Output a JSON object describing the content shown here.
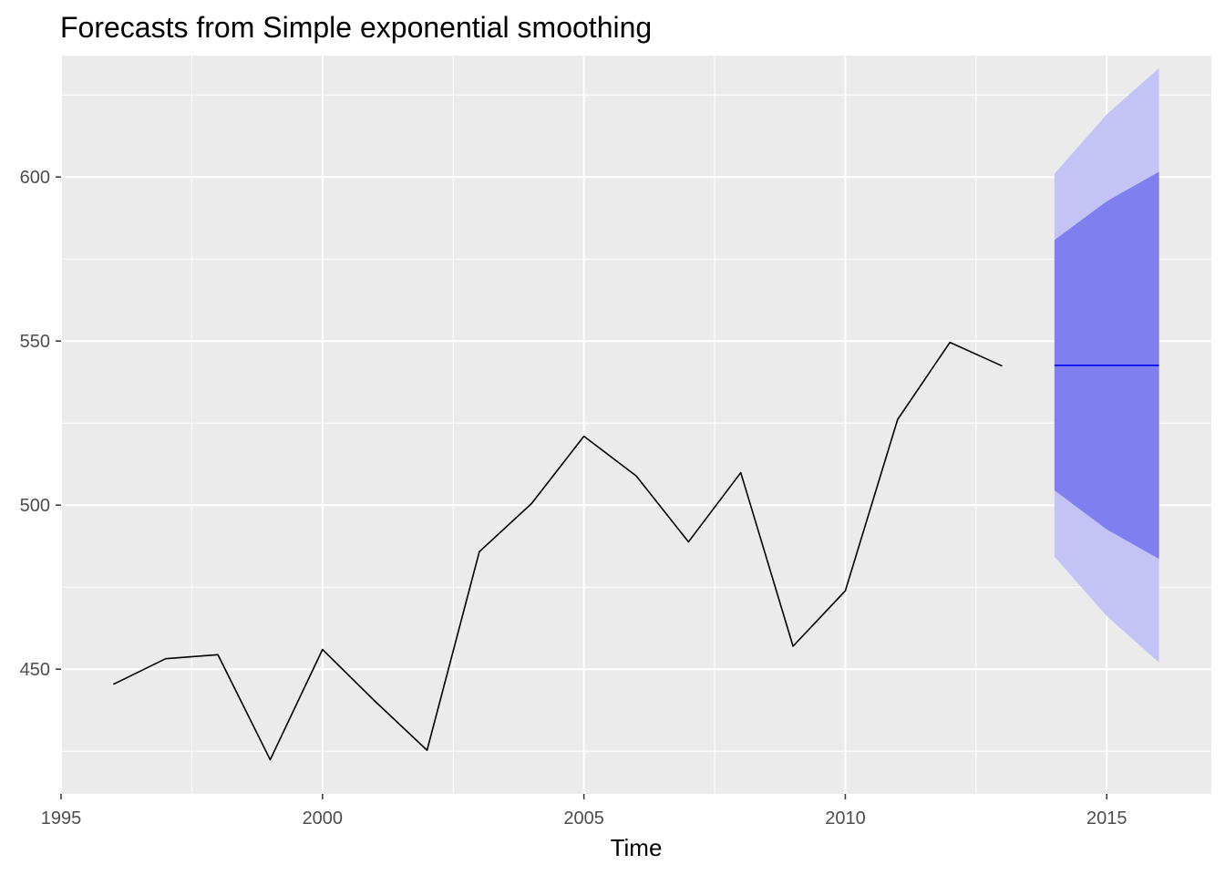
{
  "chart_data": {
    "type": "line",
    "title": "Forecasts from Simple exponential smoothing",
    "xlabel": "Time",
    "ylabel": "",
    "xlim": [
      1995,
      2017
    ],
    "ylim": [
      412,
      637
    ],
    "x_ticks": [
      1995,
      2000,
      2005,
      2010,
      2015
    ],
    "x_tick_labels": [
      "1995",
      "2000",
      "2005",
      "2010",
      "2015"
    ],
    "y_ticks": [
      450,
      500,
      550,
      600
    ],
    "y_tick_labels": [
      "450",
      "500",
      "550",
      "600"
    ],
    "grid": true,
    "legend": "none",
    "series": [
      {
        "x": [
          1996,
          1997,
          1998,
          1999,
          2000,
          2001,
          2002,
          2003,
          2004,
          2005,
          2006,
          2007,
          2008,
          2009,
          2010,
          2011,
          2012,
          2013
        ],
        "values": [
          445.4,
          453.2,
          454.4,
          422.4,
          456.0,
          440.3,
          425.3,
          485.8,
          500.5,
          521.0,
          508.9,
          488.8,
          509.9,
          457.0,
          473.9,
          526.1,
          549.6,
          542.4
        ],
        "color": "#000000"
      }
    ],
    "forecast": {
      "x": [
        2014,
        2015,
        2016
      ],
      "mean": [
        542.6,
        542.6,
        542.6
      ],
      "lo80": [
        504.5,
        492.6,
        483.6
      ],
      "hi80": [
        580.8,
        592.6,
        601.6
      ],
      "lo95": [
        484.3,
        466.2,
        452.0
      ],
      "hi95": [
        601.0,
        619.1,
        633.2
      ],
      "mean_color": "#0000ff",
      "band80_color": "#7f7ff0",
      "band95_color": "#c3c3f5"
    },
    "panel_color": "#ebebeb",
    "grid_color": "#ffffff"
  }
}
